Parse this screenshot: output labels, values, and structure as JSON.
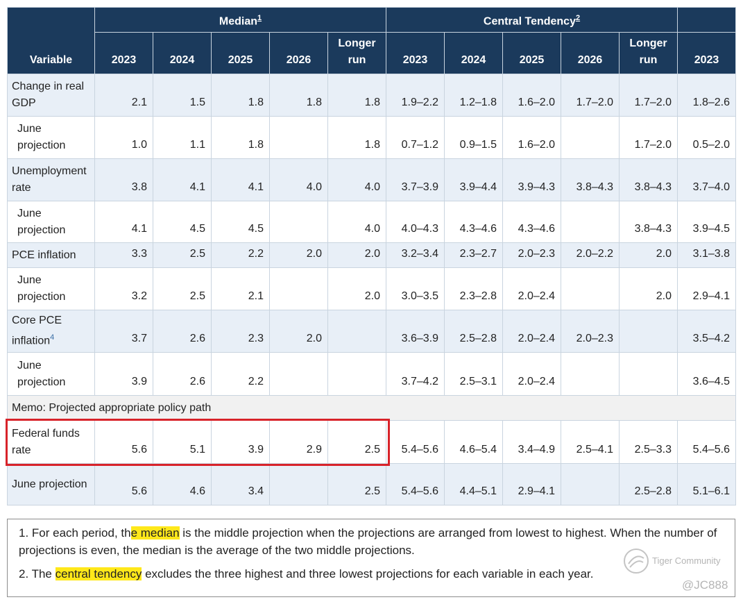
{
  "table": {
    "header": {
      "variable": "Variable",
      "groups": [
        {
          "label": "Median",
          "note": "1"
        },
        {
          "label": "Central Tendency",
          "note": "2"
        }
      ],
      "columns": [
        "2023",
        "2024",
        "2025",
        "2026",
        "Longer run",
        "2023",
        "2024",
        "2025",
        "2026",
        "Longer run",
        "2023"
      ]
    },
    "rows": [
      {
        "label": "Change in real GDP",
        "cells": [
          "2.1",
          "1.5",
          "1.8",
          "1.8",
          "1.8",
          "1.9–2.2",
          "1.2–1.8",
          "1.6–2.0",
          "1.7–2.0",
          "1.7–2.0",
          "1.8–2.6"
        ]
      },
      {
        "label": "June projection",
        "cells": [
          "1.0",
          "1.1",
          "1.8",
          null,
          "1.8",
          "0.7–1.2",
          "0.9–1.5",
          "1.6–2.0",
          null,
          "1.7–2.0",
          "0.5–2.0"
        ]
      },
      {
        "label": "Unemployment rate",
        "cells": [
          "3.8",
          "4.1",
          "4.1",
          "4.0",
          "4.0",
          "3.7–3.9",
          "3.9–4.4",
          "3.9–4.3",
          "3.8–4.3",
          "3.8–4.3",
          "3.7–4.0"
        ]
      },
      {
        "label": "June projection",
        "cells": [
          "4.1",
          "4.5",
          "4.5",
          null,
          "4.0",
          "4.0–4.3",
          "4.3–4.6",
          "4.3–4.6",
          null,
          "3.8–4.3",
          "3.9–4.5"
        ]
      },
      {
        "label": "PCE inflation",
        "cells": [
          "3.3",
          "2.5",
          "2.2",
          "2.0",
          "2.0",
          "3.2–3.4",
          "2.3–2.7",
          "2.0–2.3",
          "2.0–2.2",
          "2.0",
          "3.1–3.8"
        ]
      },
      {
        "label": "June projection",
        "cells": [
          "3.2",
          "2.5",
          "2.1",
          null,
          "2.0",
          "3.0–3.5",
          "2.3–2.8",
          "2.0–2.4",
          null,
          "2.0",
          "2.9–4.1"
        ]
      },
      {
        "label": "Core PCE inflation",
        "note": "4",
        "cells": [
          "3.7",
          "2.6",
          "2.3",
          "2.0",
          null,
          "3.6–3.9",
          "2.5–2.8",
          "2.0–2.4",
          "2.0–2.3",
          null,
          "3.5–4.2"
        ]
      },
      {
        "label": "June projection",
        "cells": [
          "3.9",
          "2.6",
          "2.2",
          null,
          null,
          "3.7–4.2",
          "2.5–3.1",
          "2.0–2.4",
          null,
          null,
          "3.6–4.5"
        ]
      },
      {
        "memo": "Memo: Projected appropriate policy path"
      },
      {
        "label": "Federal funds rate",
        "cells": [
          "5.6",
          "5.1",
          "3.9",
          "2.9",
          "2.5",
          "5.4–5.6",
          "4.6–5.4",
          "3.4–4.9",
          "2.5–4.1",
          "2.5–3.3",
          "5.4–5.6"
        ]
      },
      {
        "label": "June projection",
        "cells": [
          "5.6",
          "4.6",
          "3.4",
          null,
          "2.5",
          "5.4–5.6",
          "4.4–5.1",
          "2.9–4.1",
          null,
          "2.5–2.8",
          "5.1–6.1"
        ]
      }
    ]
  },
  "footnotes": [
    {
      "before": "1. For each period, th",
      "highlight": "e median",
      "after": " is the middle projection when the projections are arranged from lowest to highest. When the number of projections is even, the median is the average of the two middle projections."
    },
    {
      "before": "2. The ",
      "highlight": "central tendency",
      "after": " excludes the three highest and three lowest projections for each variable in each year."
    }
  ],
  "watermark": {
    "brand": "Tiger Community",
    "user": "@JC888"
  }
}
